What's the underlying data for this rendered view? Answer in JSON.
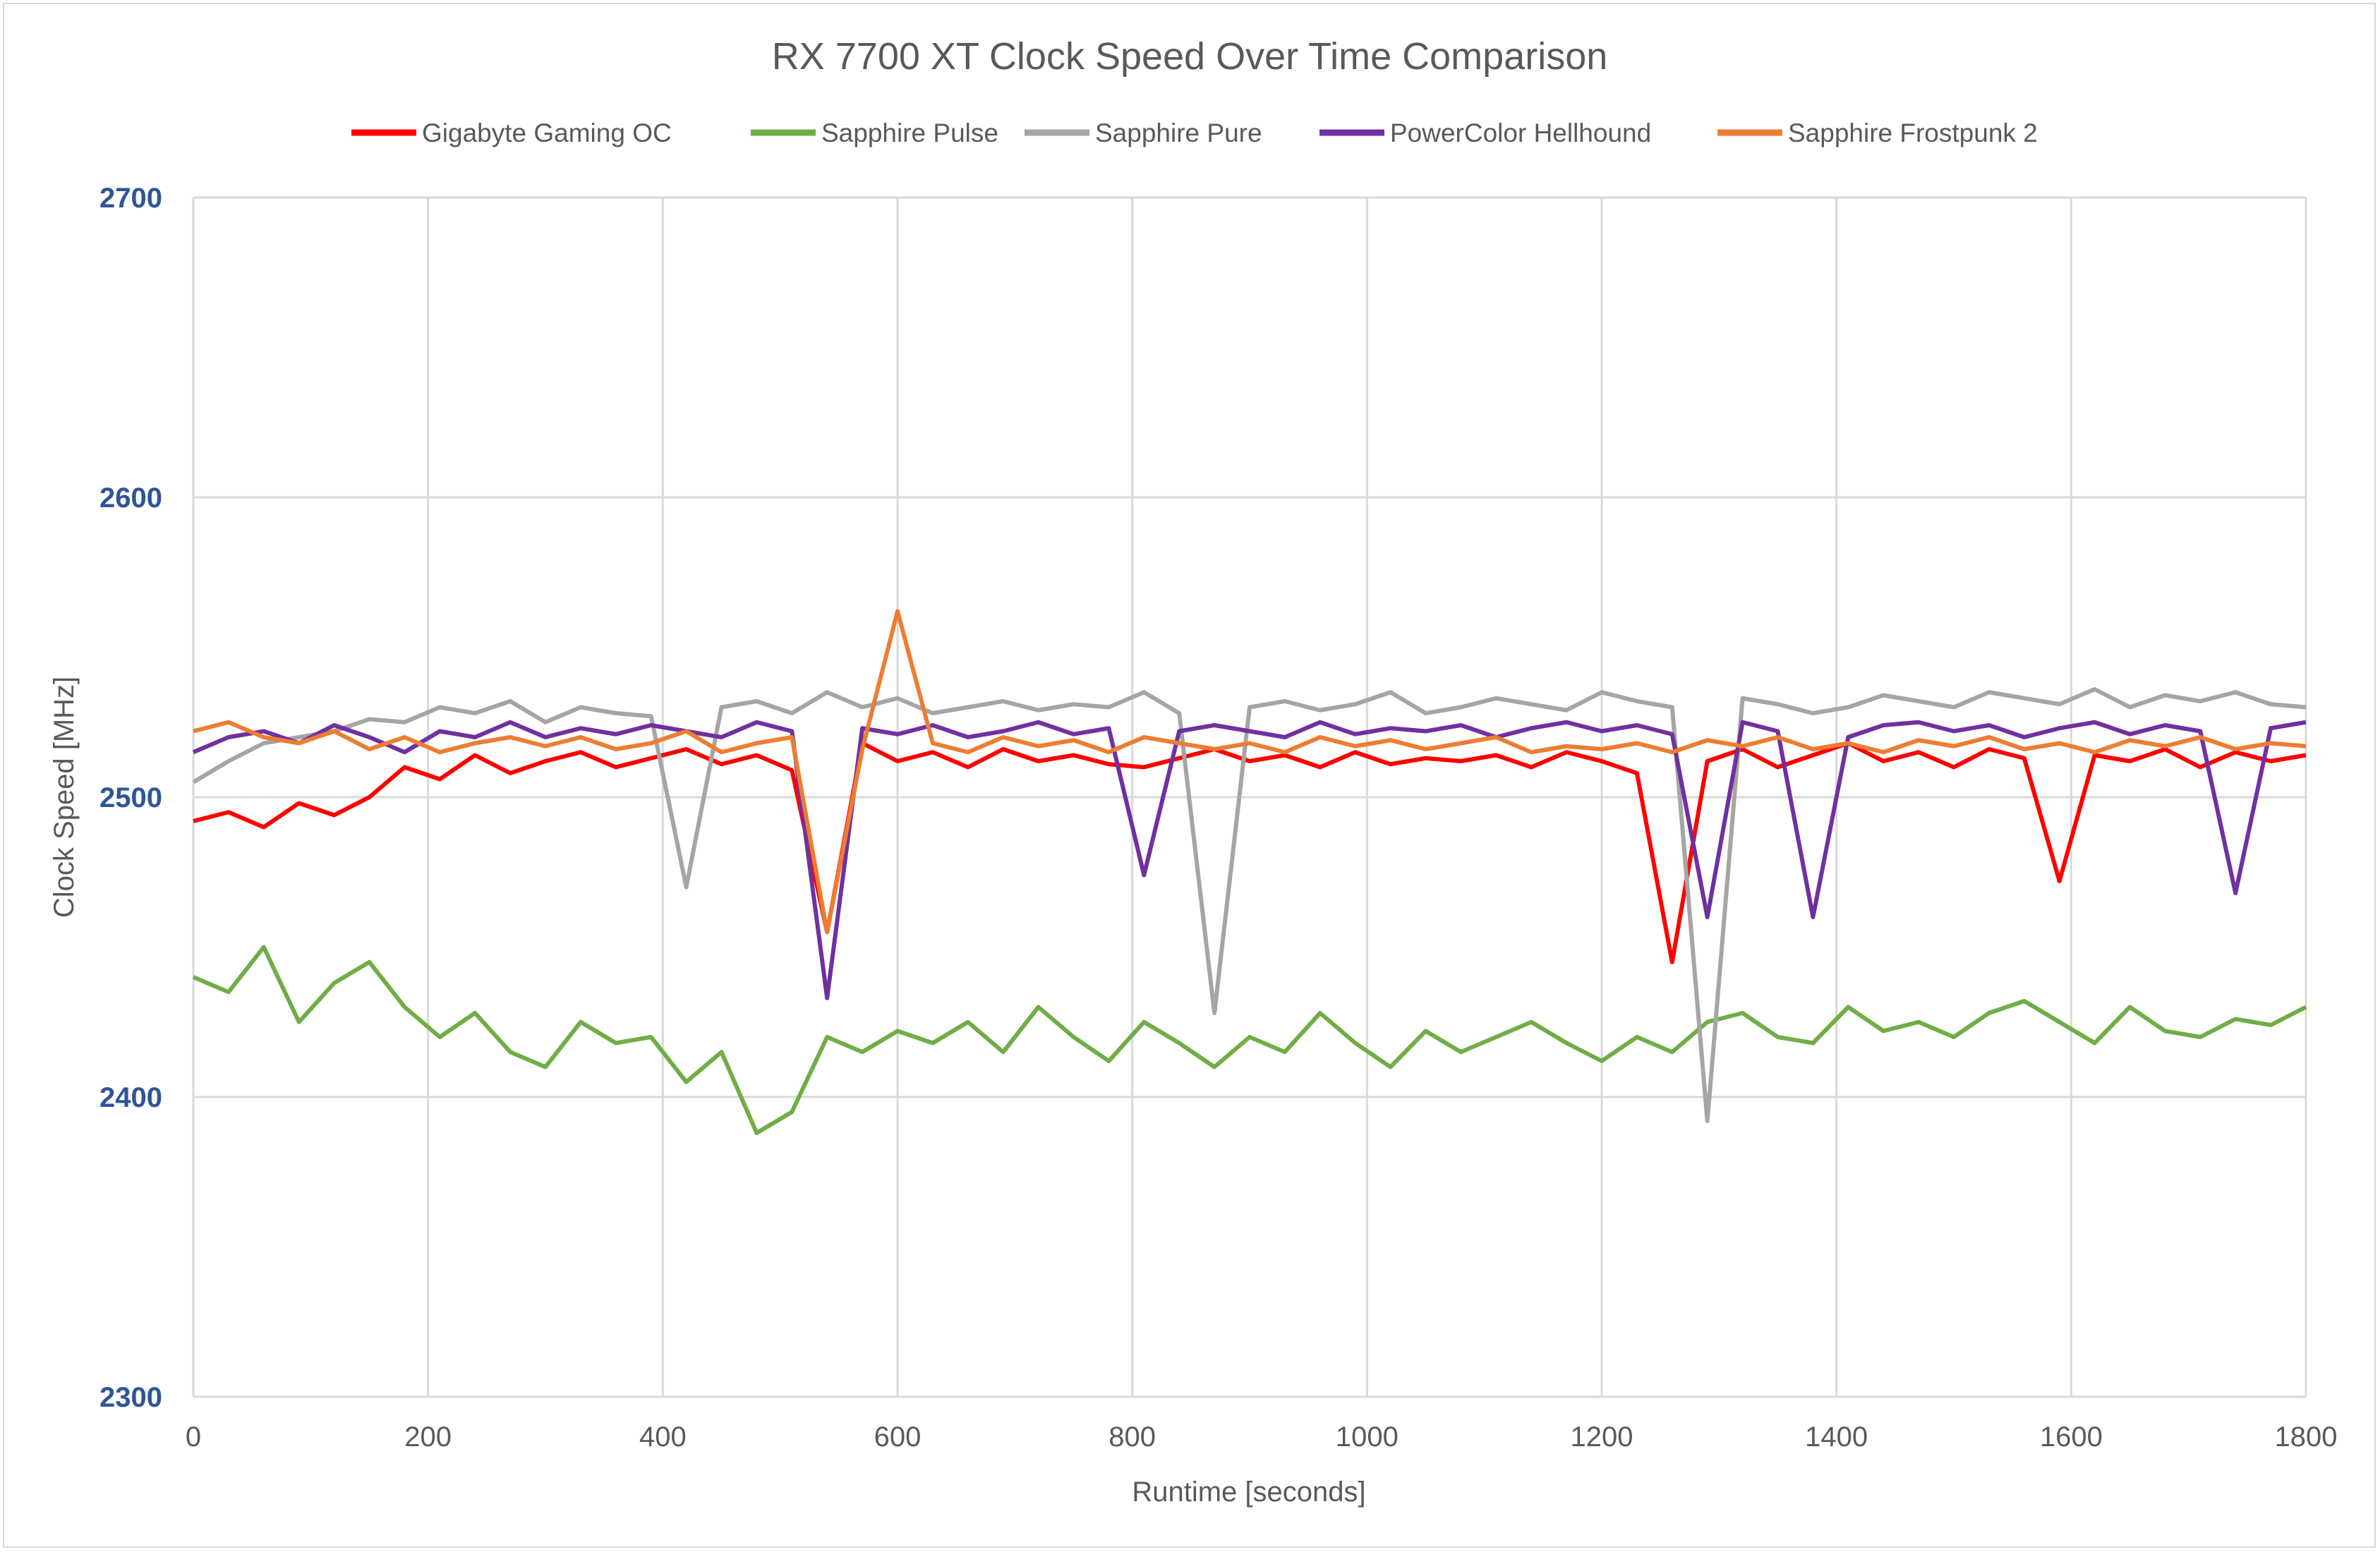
{
  "chart_data": {
    "type": "line",
    "title": "RX 7700 XT Clock Speed Over Time Comparison",
    "xlabel": "Runtime [seconds]",
    "ylabel": "Clock Speed [MHz]",
    "xlim": [
      0,
      1800
    ],
    "ylim": [
      2300,
      2700
    ],
    "xticks": [
      0,
      200,
      400,
      600,
      800,
      1000,
      1200,
      1400,
      1600,
      1800
    ],
    "yticks": [
      2300,
      2400,
      2500,
      2600,
      2700
    ],
    "grid": true,
    "legend_position": "top",
    "x": [
      0,
      30,
      60,
      90,
      120,
      150,
      180,
      210,
      240,
      270,
      300,
      330,
      360,
      390,
      420,
      450,
      480,
      510,
      540,
      570,
      600,
      630,
      660,
      690,
      720,
      750,
      780,
      810,
      840,
      870,
      900,
      930,
      960,
      990,
      1020,
      1050,
      1080,
      1110,
      1140,
      1170,
      1200,
      1230,
      1260,
      1290,
      1320,
      1350,
      1380,
      1410,
      1440,
      1470,
      1500,
      1530,
      1560,
      1590,
      1620,
      1650,
      1680,
      1710,
      1740,
      1770,
      1800
    ],
    "series": [
      {
        "name": "Gigabyte Gaming OC",
        "color": "#FF0000",
        "values": [
          2492,
          2495,
          2490,
          2498,
          2494,
          2500,
          2510,
          2506,
          2514,
          2508,
          2512,
          2515,
          2510,
          2513,
          2516,
          2511,
          2514,
          2509,
          2455,
          2518,
          2512,
          2515,
          2510,
          2516,
          2512,
          2514,
          2511,
          2510,
          2513,
          2516,
          2512,
          2514,
          2510,
          2515,
          2511,
          2513,
          2512,
          2514,
          2510,
          2515,
          2512,
          2508,
          2445,
          2512,
          2516,
          2510,
          2514,
          2518,
          2512,
          2515,
          2510,
          2516,
          2513,
          2472,
          2514,
          2512,
          2516,
          2510,
          2515,
          2512,
          2514
        ]
      },
      {
        "name": "Sapphire Pulse",
        "color": "#70AD47",
        "values": [
          2440,
          2435,
          2450,
          2425,
          2438,
          2445,
          2430,
          2420,
          2428,
          2415,
          2410,
          2425,
          2418,
          2420,
          2405,
          2415,
          2388,
          2395,
          2420,
          2415,
          2422,
          2418,
          2425,
          2415,
          2430,
          2420,
          2412,
          2425,
          2418,
          2410,
          2420,
          2415,
          2428,
          2418,
          2410,
          2422,
          2415,
          2420,
          2425,
          2418,
          2412,
          2420,
          2415,
          2425,
          2428,
          2420,
          2418,
          2430,
          2422,
          2425,
          2420,
          2428,
          2432,
          2425,
          2418,
          2430,
          2422,
          2420,
          2426,
          2424,
          2430
        ]
      },
      {
        "name": "Sapphire Pure",
        "color": "#A5A5A5",
        "values": [
          2505,
          2512,
          2518,
          2520,
          2522,
          2526,
          2525,
          2530,
          2528,
          2532,
          2525,
          2530,
          2528,
          2527,
          2470,
          2530,
          2532,
          2528,
          2535,
          2530,
          2533,
          2528,
          2530,
          2532,
          2529,
          2531,
          2530,
          2535,
          2528,
          2428,
          2530,
          2532,
          2529,
          2531,
          2535,
          2528,
          2530,
          2533,
          2531,
          2529,
          2535,
          2532,
          2530,
          2392,
          2533,
          2531,
          2528,
          2530,
          2534,
          2532,
          2530,
          2535,
          2533,
          2531,
          2536,
          2530,
          2534,
          2532,
          2535,
          2531,
          2530
        ]
      },
      {
        "name": "PowerColor Hellhound",
        "color": "#7030A0",
        "values": [
          2515,
          2520,
          2522,
          2518,
          2524,
          2520,
          2515,
          2522,
          2520,
          2525,
          2520,
          2523,
          2521,
          2524,
          2522,
          2520,
          2525,
          2522,
          2433,
          2523,
          2521,
          2524,
          2520,
          2522,
          2525,
          2521,
          2523,
          2474,
          2522,
          2524,
          2522,
          2520,
          2525,
          2521,
          2523,
          2522,
          2524,
          2520,
          2523,
          2525,
          2522,
          2524,
          2521,
          2460,
          2525,
          2522,
          2460,
          2520,
          2524,
          2525,
          2522,
          2524,
          2520,
          2523,
          2525,
          2521,
          2524,
          2522,
          2468,
          2523,
          2525
        ]
      },
      {
        "name": "Sapphire Frostpunk 2",
        "color": "#ED7D31",
        "values": [
          2522,
          2525,
          2520,
          2518,
          2522,
          2516,
          2520,
          2515,
          2518,
          2520,
          2517,
          2520,
          2516,
          2518,
          2522,
          2515,
          2518,
          2520,
          2455,
          2516,
          2562,
          2518,
          2515,
          2520,
          2517,
          2519,
          2515,
          2520,
          2518,
          2516,
          2518,
          2515,
          2520,
          2517,
          2519,
          2516,
          2518,
          2520,
          2515,
          2517,
          2516,
          2518,
          2515,
          2519,
          2517,
          2520,
          2516,
          2518,
          2515,
          2519,
          2517,
          2520,
          2516,
          2518,
          2515,
          2519,
          2517,
          2520,
          2516,
          2518,
          2517
        ]
      }
    ]
  },
  "colors": {
    "axis_label": "#2F5597",
    "grid": "#d9d9d9",
    "text": "#595959"
  }
}
